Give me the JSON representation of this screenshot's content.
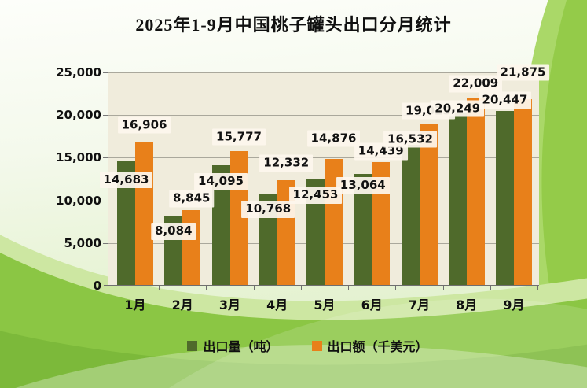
{
  "title": "2025年1-9月中国桃子罐头出口分月统计",
  "colors": {
    "volume_bar": "#4f6a2b",
    "value_bar": "#e8801a",
    "plot_background": "#f0ecdc",
    "gridline": "#aaa89c",
    "background_green": "#8bc644"
  },
  "chart_data": {
    "type": "bar",
    "title": "2025年1-9月中国桃子罐头出口分月统计",
    "categories": [
      "1月",
      "2月",
      "3月",
      "4月",
      "5月",
      "6月",
      "7月",
      "8月",
      "9月"
    ],
    "series": [
      {
        "name": "出口量（吨）",
        "color": "#4f6a2b",
        "values": [
          14683,
          8084,
          14095,
          10768,
          12453,
          13064,
          16532,
          20249,
          20447
        ],
        "labels": [
          "14,683",
          "8,084",
          "14,095",
          "10,768",
          "12,453",
          "13,064",
          "16,532",
          "20,249",
          "20,447"
        ]
      },
      {
        "name": "出口额（千美元）",
        "color": "#e8801a",
        "values": [
          16906,
          8845,
          15777,
          12332,
          14876,
          14439,
          19025,
          22009,
          21875
        ],
        "labels": [
          "16,906",
          "8,845",
          "15,777",
          "12,332",
          "14,876",
          "14,439",
          "19,025",
          "22,009",
          "21,875"
        ]
      }
    ],
    "ylim": [
      0,
      25000
    ],
    "ytick_step": 5000,
    "ytick_labels": [
      "0",
      "5,000",
      "10,000",
      "15,000",
      "20,000",
      "25,000"
    ],
    "grid": true,
    "legend_position": "bottom",
    "xlabel": "",
    "ylabel": ""
  }
}
